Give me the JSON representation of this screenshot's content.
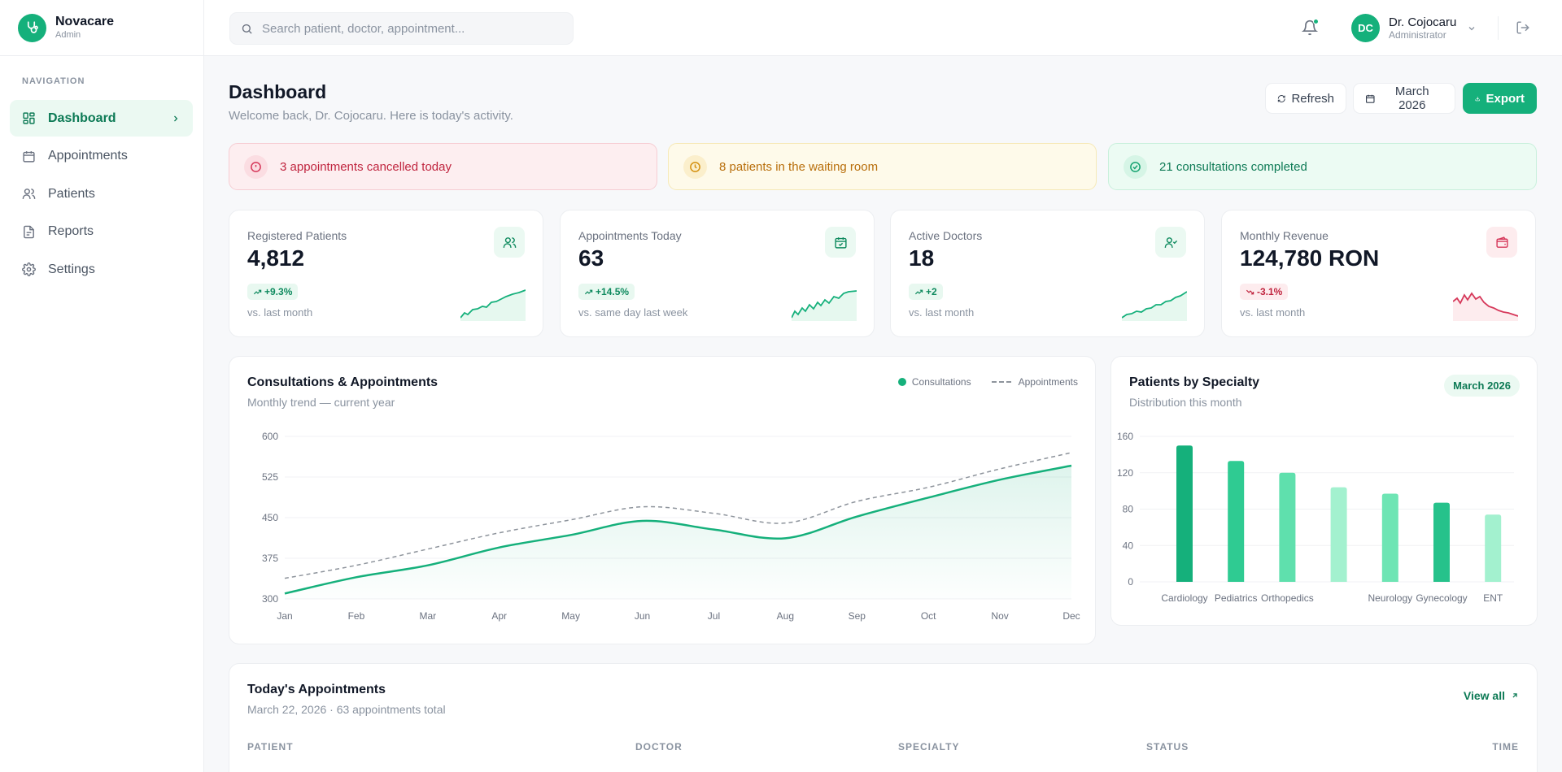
{
  "brand": {
    "name": "Novacare",
    "subtitle": "Admin"
  },
  "sidebar": {
    "section_title": "NAVIGATION",
    "items": [
      {
        "label": "Dashboard",
        "icon": "dashboard-icon",
        "active": true
      },
      {
        "label": "Appointments",
        "icon": "calendar-icon"
      },
      {
        "label": "Patients",
        "icon": "users-icon"
      },
      {
        "label": "Reports",
        "icon": "document-icon"
      },
      {
        "label": "Settings",
        "icon": "gear-icon"
      }
    ]
  },
  "topbar": {
    "search_placeholder": "Search patient, doctor, appointment...",
    "user": {
      "initials": "DC",
      "name": "Dr. Cojocaru",
      "role": "Administrator"
    }
  },
  "page": {
    "title": "Dashboard",
    "subtitle": "Welcome back, Dr. Cojocaru. Here is today's activity.",
    "buttons": {
      "refresh": "Refresh",
      "date": "March 2026",
      "export": "Export"
    }
  },
  "alerts": [
    {
      "text": "3 appointments cancelled today",
      "tone": "danger"
    },
    {
      "text": "8 patients in the waiting room",
      "tone": "warning"
    },
    {
      "text": "21 consultations completed",
      "tone": "success"
    }
  ],
  "stats": [
    {
      "label": "Registered Patients",
      "value": "4,812",
      "change": "+9.3%",
      "trend": "up",
      "footnote": "vs. last month",
      "icon": "users-icon"
    },
    {
      "label": "Appointments Today",
      "value": "63",
      "change": "+14.5%",
      "trend": "up",
      "footnote": "vs. same day last week",
      "icon": "calendar-check-icon"
    },
    {
      "label": "Active Doctors",
      "value": "18",
      "change": "+2",
      "trend": "up",
      "footnote": "vs. last month",
      "icon": "user-check-icon"
    },
    {
      "label": "Monthly Revenue",
      "value": "124,780 RON",
      "change": "-3.1%",
      "trend": "down",
      "footnote": "vs. last month",
      "icon": "wallet-icon"
    }
  ],
  "colors": {
    "accent": "#15b07b",
    "danger": "#d6385a",
    "warning": "#d4900f"
  },
  "line_card": {
    "title": "Consultations & Appointments",
    "subtitle": "Monthly trend — current year",
    "legend": [
      "Consultations",
      "Appointments"
    ]
  },
  "bar_card": {
    "title": "Patients by Specialty",
    "subtitle": "Distribution this month",
    "pill": "March 2026"
  },
  "chart_data": [
    {
      "type": "line",
      "categories": [
        "Jan",
        "Feb",
        "Mar",
        "Apr",
        "May",
        "Jun",
        "Jul",
        "Aug",
        "Sep",
        "Oct",
        "Nov",
        "Dec"
      ],
      "series": [
        {
          "name": "Consultations",
          "values": [
            310,
            340,
            362,
            395,
            418,
            444,
            428,
            412,
            452,
            487,
            520,
            546
          ]
        },
        {
          "name": "Appointments",
          "values": [
            338,
            362,
            392,
            422,
            446,
            470,
            458,
            440,
            480,
            506,
            540,
            570
          ]
        }
      ],
      "ylim": [
        300,
        600
      ],
      "yticks": [
        300,
        375,
        450,
        525,
        600
      ],
      "grid": true
    },
    {
      "type": "bar",
      "categories": [
        "Cardiology",
        "Pediatrics",
        "Orthopedics",
        "",
        "Neurology",
        "Gynecology",
        "ENT"
      ],
      "values": [
        150,
        133,
        120,
        104,
        97,
        87,
        74
      ],
      "colors": [
        "#15b07b",
        "#2fcb92",
        "#5fe0ad",
        "#a3f1cf",
        "#6ee5b4",
        "#26c28b",
        "#a3f1cf"
      ],
      "ylim": [
        0,
        160
      ],
      "yticks": [
        0,
        40,
        80,
        120,
        160
      ],
      "grid": true
    }
  ],
  "table": {
    "title": "Today's Appointments",
    "subtitle": "March 22, 2026 · 63 appointments total",
    "view_all": "View all",
    "columns": [
      "PATIENT",
      "DOCTOR",
      "SPECIALTY",
      "STATUS",
      "TIME"
    ]
  }
}
